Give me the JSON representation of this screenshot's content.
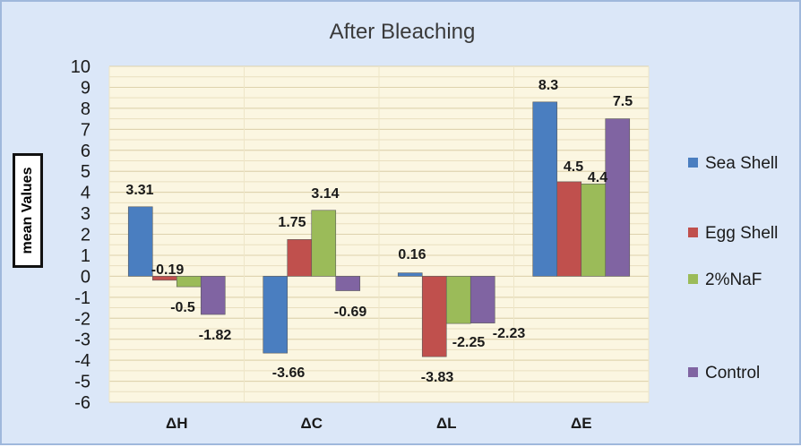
{
  "chart_data": {
    "type": "bar",
    "title": "After Bleaching",
    "xlabel": "",
    "ylabel": "mean Values",
    "categories": [
      "ΔH",
      "ΔC",
      "ΔL",
      "ΔE"
    ],
    "ylim": [
      -6,
      10
    ],
    "yticks": [
      "10",
      "9",
      "8",
      "7",
      "6",
      "5",
      "4",
      "3",
      "2",
      "1",
      "0",
      "-1",
      "-2",
      "-3",
      "-4",
      "-5",
      "-6"
    ],
    "grid": true,
    "legend_position": "right",
    "series": [
      {
        "name": "Sea Shell",
        "color": "#4a7ec0",
        "values": [
          3.31,
          -3.66,
          0.16,
          8.3
        ],
        "labels": [
          "3.31",
          "-3.66",
          "0.16",
          "8.3"
        ]
      },
      {
        "name": "Egg Shell",
        "color": "#c0504d",
        "values": [
          -0.19,
          1.75,
          -3.83,
          4.5
        ],
        "labels": [
          "-0.19",
          "1.75",
          "-3.83",
          "4.5"
        ]
      },
      {
        "name": "2%NaF",
        "color": "#9bbb59",
        "values": [
          -0.5,
          3.14,
          -2.25,
          4.4
        ],
        "labels": [
          "-0.5",
          "3.14",
          "-2.25",
          "4.4"
        ]
      },
      {
        "name": "Control",
        "color": "#8064a2",
        "values": [
          -1.82,
          -0.69,
          -2.23,
          7.5
        ],
        "labels": [
          "-1.82",
          "-0.69",
          "-2.23",
          "7.5"
        ]
      }
    ]
  }
}
